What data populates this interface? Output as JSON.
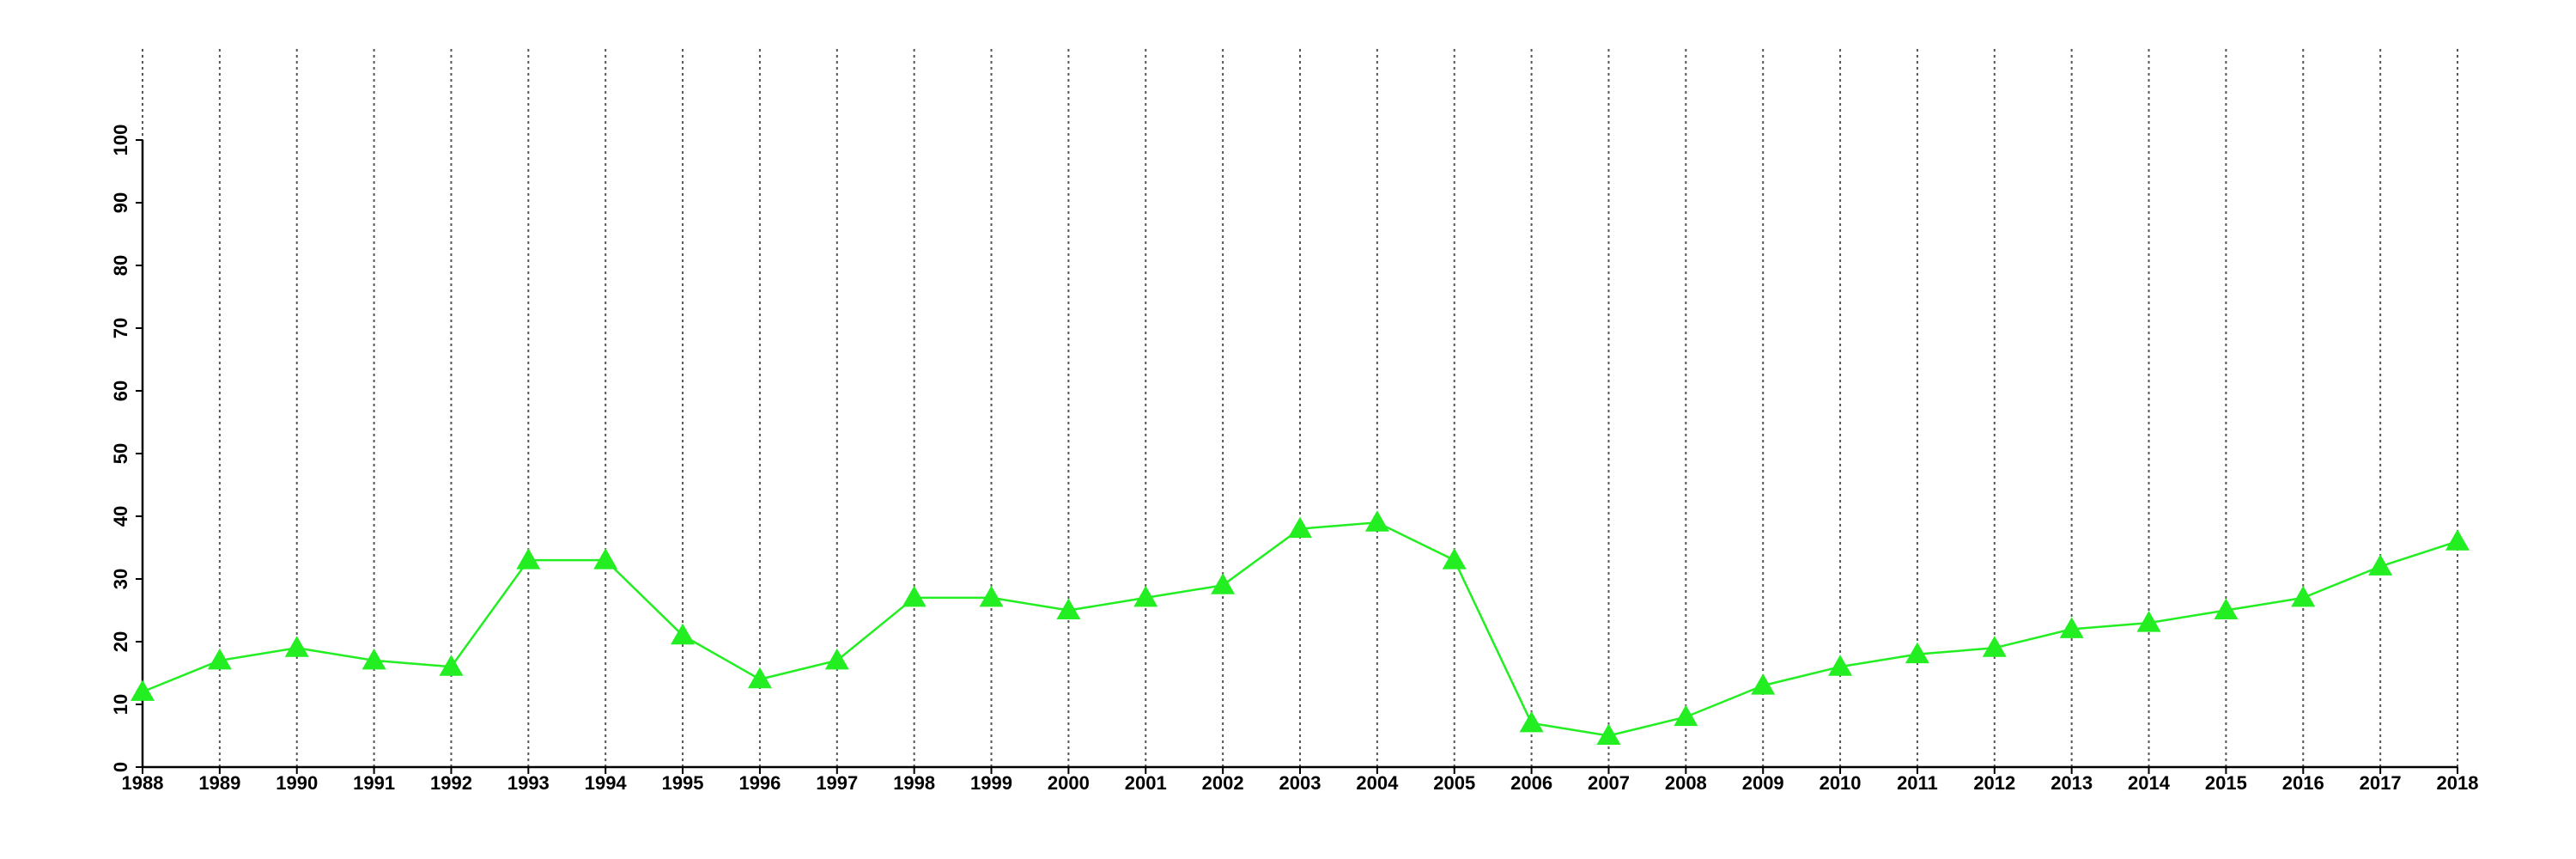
{
  "chart_data": {
    "type": "line",
    "x": [
      1988,
      1989,
      1990,
      1991,
      1992,
      1993,
      1994,
      1995,
      1996,
      1997,
      1998,
      1999,
      2000,
      2001,
      2002,
      2003,
      2004,
      2005,
      2006,
      2007,
      2008,
      2009,
      2010,
      2011,
      2012,
      2013,
      2014,
      2015,
      2016,
      2017,
      2018
    ],
    "values": [
      12,
      17,
      19,
      17,
      16,
      33,
      33,
      21,
      14,
      17,
      27,
      27,
      25,
      27,
      29,
      38,
      39,
      33,
      7,
      5,
      8,
      13,
      16,
      18,
      19,
      22,
      23,
      25,
      27,
      32,
      36
    ],
    "color": "#22ee22",
    "marker": "triangle",
    "xlim": [
      1988,
      2018
    ],
    "xticks": [
      1988,
      1989,
      1990,
      1991,
      1992,
      1993,
      1994,
      1995,
      1996,
      1997,
      1998,
      1999,
      2000,
      2001,
      2002,
      2003,
      2004,
      2005,
      2006,
      2007,
      2008,
      2009,
      2010,
      2011,
      2012,
      2013,
      2014,
      2015,
      2016,
      2017,
      2018
    ],
    "ylim": [
      0,
      100
    ],
    "yticks": [
      0,
      10,
      20,
      30,
      40,
      50,
      60,
      70,
      80,
      90,
      100
    ],
    "grid": "x"
  }
}
